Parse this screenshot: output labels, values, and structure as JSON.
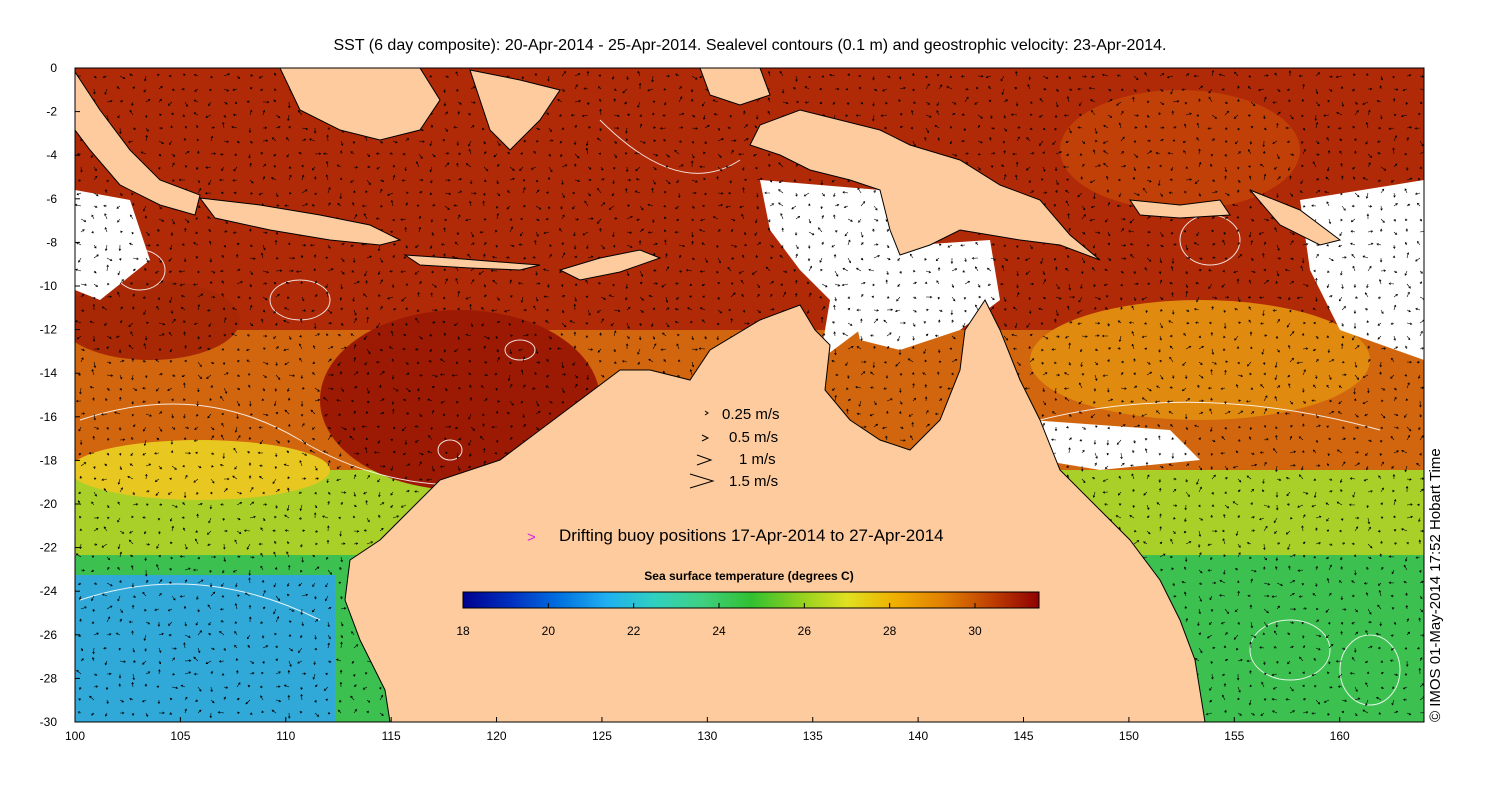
{
  "title": "SST (6 day composite): 20-Apr-2014 - 25-Apr-2014. Sealevel contours (0.1 m) and geostrophic velocity: 23-Apr-2014.",
  "map": {
    "lon_range": [
      100,
      164
    ],
    "lat_range": [
      -30,
      0
    ],
    "x_ticks": [
      "100",
      "105",
      "110",
      "115",
      "120",
      "125",
      "130",
      "135",
      "140",
      "145",
      "150",
      "155",
      "160"
    ],
    "y_ticks": [
      "0",
      "-2",
      "-4",
      "-6",
      "-8",
      "-10",
      "-12",
      "-14",
      "-16",
      "-18",
      "-20",
      "-22",
      "-24",
      "-26",
      "-28",
      "-30"
    ],
    "land_color": "#fdcb9d",
    "missing_color": "#ffffff"
  },
  "velocity_legend": [
    {
      "label": "0.25 m/s",
      "speed": 0.25
    },
    {
      "label": "0.5 m/s",
      "speed": 0.5
    },
    {
      "label": "1 m/s",
      "speed": 1
    },
    {
      "label": "1.5 m/s",
      "speed": 1.5
    }
  ],
  "buoy_legend": {
    "symbol": ">",
    "label": "Drifting buoy positions 17-Apr-2014 to 27-Apr-2014",
    "color": "#e020e0"
  },
  "colorbar": {
    "title": "Sea surface temperature (degrees C)",
    "range": [
      18,
      31.5
    ],
    "ticks": [
      "18",
      "20",
      "22",
      "24",
      "26",
      "28",
      "30"
    ],
    "colors": [
      "#00008f",
      "#0030c0",
      "#0070e0",
      "#20b0f0",
      "#30d0c0",
      "#40d080",
      "#30c030",
      "#90d020",
      "#e0e020",
      "#f0b000",
      "#e08000",
      "#c04000",
      "#900000"
    ]
  },
  "credit": "© IMOS 01-May-2014 17:52 Hobart Time"
}
